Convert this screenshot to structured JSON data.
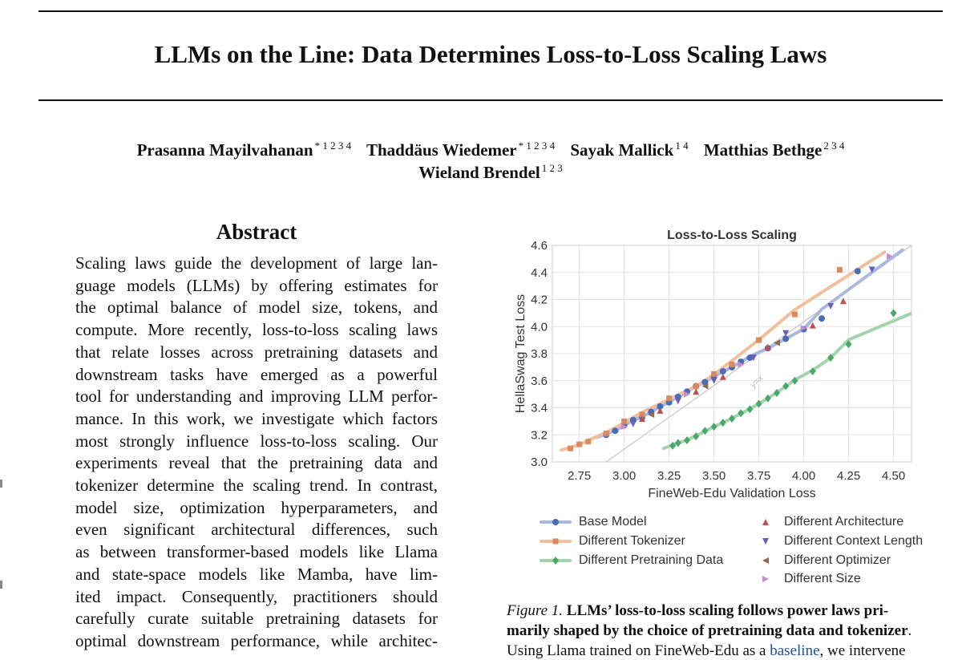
{
  "paper": {
    "title": "LLMs on the Line: Data Determines Loss-to-Loss Scaling Laws",
    "authors": [
      {
        "name": "Prasanna Mayilvahanan",
        "aff": "* 1 2 3 4"
      },
      {
        "name": "Thaddäus Wiedemer",
        "aff": "* 1 2 3 4"
      },
      {
        "name": "Sayak Mallick",
        "aff": "1 4"
      },
      {
        "name": "Matthias Bethge",
        "aff": "2 3 4"
      },
      {
        "name": "Wieland Brendel",
        "aff": "1 2 3"
      }
    ]
  },
  "abstract": {
    "heading": "Abstract",
    "lines": [
      "Scaling laws guide the development of large lan-",
      "guage models (LLMs) by offering estimates for",
      "the optimal balance of model size, tokens, and",
      "compute. More recently, loss-to-loss scaling laws",
      "that relate losses across pretraining datasets and",
      "downstream tasks have emerged as a powerful",
      "tool for understanding and improving LLM perfor-",
      "mance. In this work, we investigate which factors",
      "most strongly influence loss-to-loss scaling. Our",
      "experiments reveal that the pretraining data and",
      "tokenizer determine the scaling trend. In contrast,",
      "model size, optimization hyperparameters, and",
      "even significant architectural differences, such",
      "as between transformer-based models like Llama",
      "and state-space models like Mamba, have lim-",
      "ited impact. Consequently, practitioners should",
      "carefully curate suitable pretraining datasets for",
      "optimal downstream performance, while architec-"
    ]
  },
  "chart_data": {
    "type": "scatter",
    "title": "Loss-to-Loss Scaling",
    "xlabel": "FineWeb-Edu Validation Loss",
    "ylabel": "HellaSwag Test Loss",
    "xlim": [
      2.6,
      4.6
    ],
    "ylim": [
      3.0,
      4.6
    ],
    "xticks": [
      2.75,
      3.0,
      3.25,
      3.5,
      3.75,
      4.0,
      4.25,
      4.5
    ],
    "xtick_labels": [
      "2.75",
      "3.00",
      "3.25",
      "3.50",
      "3.75",
      "4.00",
      "4.25",
      "4.50"
    ],
    "yticks": [
      3.0,
      3.2,
      3.4,
      3.6,
      3.8,
      4.0,
      4.2,
      4.4,
      4.6
    ],
    "ytick_labels": [
      "3.0",
      "3.2",
      "3.4",
      "3.6",
      "3.8",
      "4.0",
      "4.2",
      "4.4",
      "4.6"
    ],
    "grid": true,
    "reference_line": {
      "label": "y=x",
      "color": "#c8c8c8"
    },
    "series": [
      {
        "name": "Base Model",
        "marker": "circle",
        "color": "#4a6bb5",
        "line_color": "#a9b8de",
        "points": [
          [
            2.9,
            3.2
          ],
          [
            2.95,
            3.23
          ],
          [
            3.0,
            3.27
          ],
          [
            3.05,
            3.31
          ],
          [
            3.1,
            3.33
          ],
          [
            3.15,
            3.37
          ],
          [
            3.2,
            3.41
          ],
          [
            3.25,
            3.44
          ],
          [
            3.3,
            3.48
          ],
          [
            3.35,
            3.52
          ],
          [
            3.4,
            3.56
          ],
          [
            3.45,
            3.59
          ],
          [
            3.5,
            3.63
          ],
          [
            3.55,
            3.67
          ],
          [
            3.6,
            3.7
          ],
          [
            3.65,
            3.74
          ],
          [
            3.7,
            3.77
          ],
          [
            3.8,
            3.84
          ],
          [
            3.9,
            3.91
          ],
          [
            4.0,
            3.98
          ],
          [
            4.1,
            4.06
          ],
          [
            4.3,
            4.41
          ]
        ]
      },
      {
        "name": "Different Tokenizer",
        "marker": "square",
        "color": "#d98a5f",
        "line_color": "#f0bf9e",
        "points": [
          [
            2.7,
            3.1
          ],
          [
            2.75,
            3.13
          ],
          [
            2.8,
            3.15
          ],
          [
            2.9,
            3.21
          ],
          [
            3.0,
            3.3
          ],
          [
            3.1,
            3.35
          ],
          [
            3.25,
            3.47
          ],
          [
            3.4,
            3.56
          ],
          [
            3.5,
            3.65
          ],
          [
            3.6,
            3.72
          ],
          [
            3.75,
            3.9
          ],
          [
            3.95,
            4.09
          ],
          [
            4.2,
            4.42
          ]
        ]
      },
      {
        "name": "Different Pretraining Data",
        "marker": "diamond",
        "color": "#4aa86a",
        "line_color": "#a4d4ad",
        "points": [
          [
            3.27,
            3.12
          ],
          [
            3.3,
            3.14
          ],
          [
            3.35,
            3.16
          ],
          [
            3.4,
            3.19
          ],
          [
            3.45,
            3.23
          ],
          [
            3.5,
            3.26
          ],
          [
            3.55,
            3.29
          ],
          [
            3.6,
            3.32
          ],
          [
            3.65,
            3.36
          ],
          [
            3.7,
            3.39
          ],
          [
            3.75,
            3.43
          ],
          [
            3.8,
            3.47
          ],
          [
            3.85,
            3.51
          ],
          [
            3.9,
            3.56
          ],
          [
            3.95,
            3.6
          ],
          [
            4.05,
            3.67
          ],
          [
            4.15,
            3.77
          ],
          [
            4.25,
            3.87
          ],
          [
            4.5,
            4.1
          ]
        ]
      },
      {
        "name": "Different Architecture",
        "marker": "triangle-up",
        "color": "#c0504d",
        "line_color": null,
        "points": [
          [
            3.1,
            3.32
          ],
          [
            3.2,
            3.38
          ],
          [
            3.4,
            3.52
          ],
          [
            3.55,
            3.63
          ],
          [
            3.8,
            3.85
          ],
          [
            4.05,
            4.01
          ],
          [
            4.22,
            4.19
          ]
        ]
      },
      {
        "name": "Different Context Length",
        "marker": "triangle-down",
        "color": "#6a5fb5",
        "line_color": null,
        "points": [
          [
            3.05,
            3.28
          ],
          [
            3.3,
            3.45
          ],
          [
            3.5,
            3.6
          ],
          [
            3.72,
            3.77
          ],
          [
            3.9,
            3.95
          ],
          [
            4.15,
            4.15
          ],
          [
            4.38,
            4.42
          ]
        ]
      },
      {
        "name": "Different Optimizer",
        "marker": "triangle-left",
        "color": "#8c6a4f",
        "line_color": null,
        "points": [
          [
            3.15,
            3.35
          ],
          [
            3.45,
            3.56
          ],
          [
            3.85,
            3.88
          ]
        ]
      },
      {
        "name": "Different Size",
        "marker": "triangle-right",
        "color": "#c98ad1",
        "line_color": null,
        "points": [
          [
            3.0,
            3.26
          ],
          [
            3.35,
            3.5
          ],
          [
            3.65,
            3.72
          ],
          [
            4.0,
            3.99
          ],
          [
            4.48,
            4.52
          ]
        ]
      }
    ],
    "legend_entries": [
      "Base Model",
      "Different Tokenizer",
      "Different Pretraining Data",
      "Different Architecture",
      "Different Context Length",
      "Different Optimizer",
      "Different Size"
    ]
  },
  "caption": {
    "figure_label": "Figure 1.",
    "bold_text_1": "LLMs’ loss-to-loss scaling follows power laws pri-",
    "bold_text_2": "marily shaped by the choice of pretraining data and tokenizer",
    "bold_text_2_end": ".",
    "line3_a": "Using Llama trained on FineWeb-Edu as a ",
    "line3_link": "baseline",
    "line3_b": ", we intervene"
  }
}
